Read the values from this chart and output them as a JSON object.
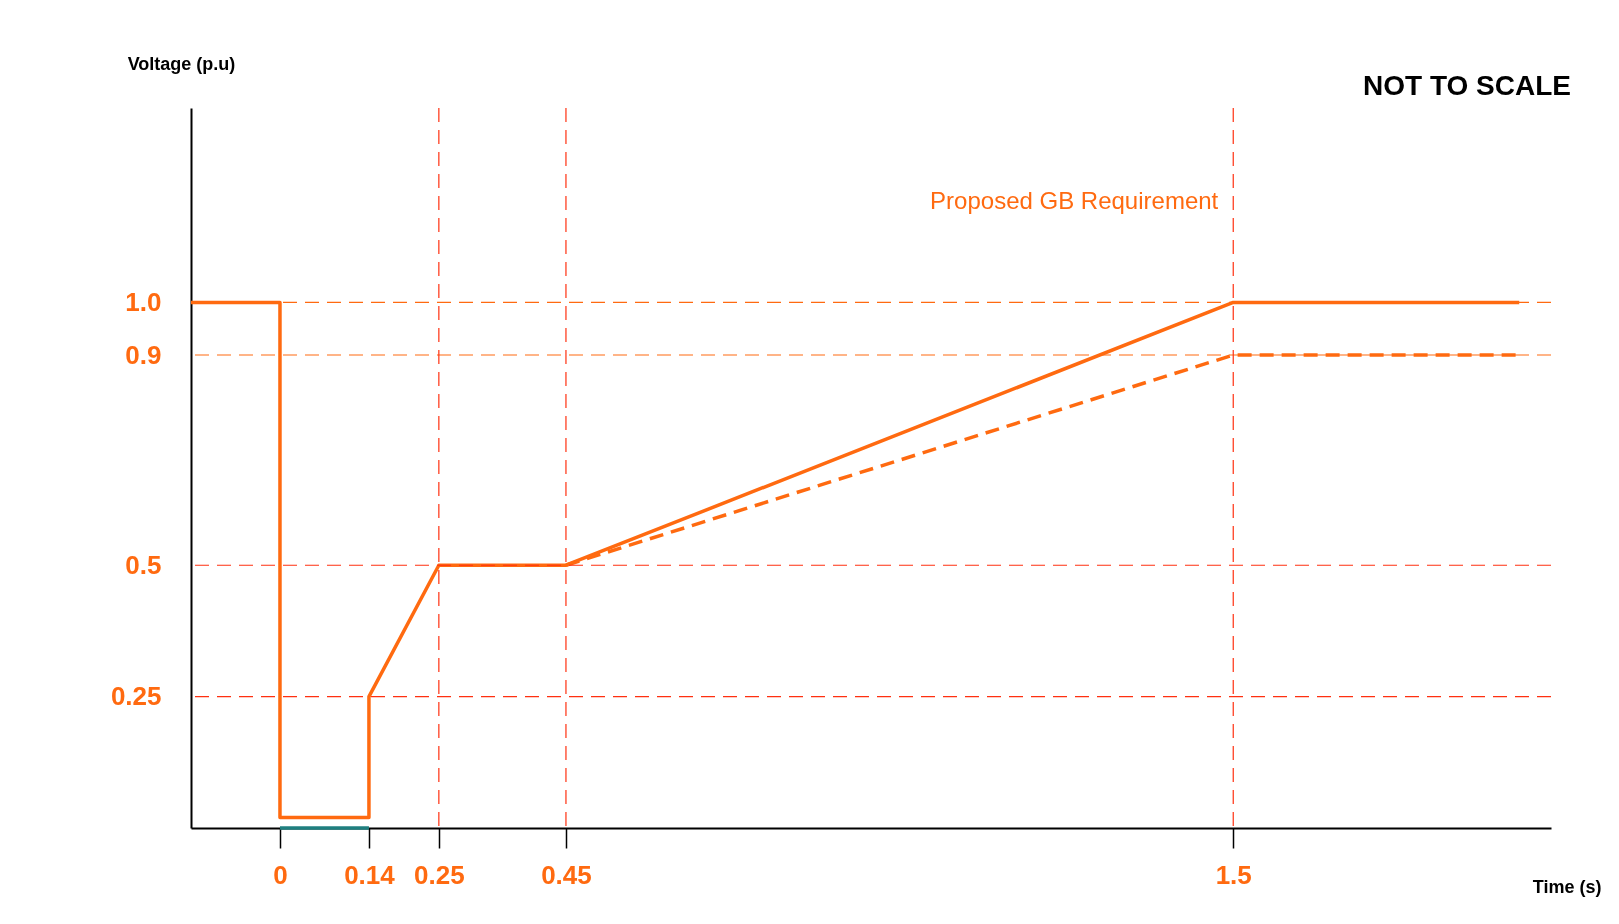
{
  "chart_data": {
    "type": "line",
    "xlabel": "Time (s)",
    "ylabel": "Voltage (p.u)",
    "annotations": [
      "NOT TO SCALE"
    ],
    "xlim": [
      -0.14,
      2.0
    ],
    "xticks": [
      {
        "value": 0,
        "label": "0"
      },
      0.14,
      0.25,
      0.45,
      1.5
    ],
    "ylim": [
      0,
      1.37
    ],
    "yticks": [
      0.25,
      0.5,
      0.9,
      {
        "value": 1,
        "label": "1.0"
      }
    ],
    "grid": false,
    "marker": "none",
    "series": [
      {
        "name": "Proposed GB Requirement",
        "color": "#ff6a10",
        "line_style": "solid",
        "x": [
          -0.14,
          0,
          0,
          0.14,
          0.14,
          0.25,
          0.45,
          1.5,
          1.95
        ],
        "values": [
          1,
          1,
          0.02,
          0.02,
          0.25,
          0.5,
          0.5,
          1,
          1
        ]
      },
      {
        "color": "#ff6a10",
        "line_style": "dashed",
        "x": [
          0.45,
          1.5,
          1.95
        ],
        "values": [
          0.5,
          0.9,
          0.9
        ]
      },
      {
        "color": "#1f7f7f",
        "line_style": "solid",
        "x": [
          0,
          0.14
        ],
        "values": [
          0,
          0
        ]
      }
    ],
    "ref_lines": [
      {
        "axis": "y",
        "value": 1,
        "color": "#ff6a10",
        "line_style": "dashed"
      },
      {
        "axis": "y",
        "value": 0.9,
        "color": "#ff6a10",
        "line_style": "dashed"
      },
      {
        "axis": "y",
        "value": 0.5,
        "color": "#ff3010",
        "line_style": "dashed"
      },
      {
        "axis": "y",
        "value": 0.25,
        "color": "#ff3010",
        "line_style": "dashed"
      },
      {
        "axis": "x",
        "value": 0.25,
        "color": "#ff3010",
        "line_style": "dashed"
      },
      {
        "axis": "x",
        "value": 0.45,
        "color": "#ff3010",
        "line_style": "dashed"
      },
      {
        "axis": "x",
        "value": 1.5,
        "color": "#ff3010",
        "line_style": "dashed"
      }
    ]
  }
}
